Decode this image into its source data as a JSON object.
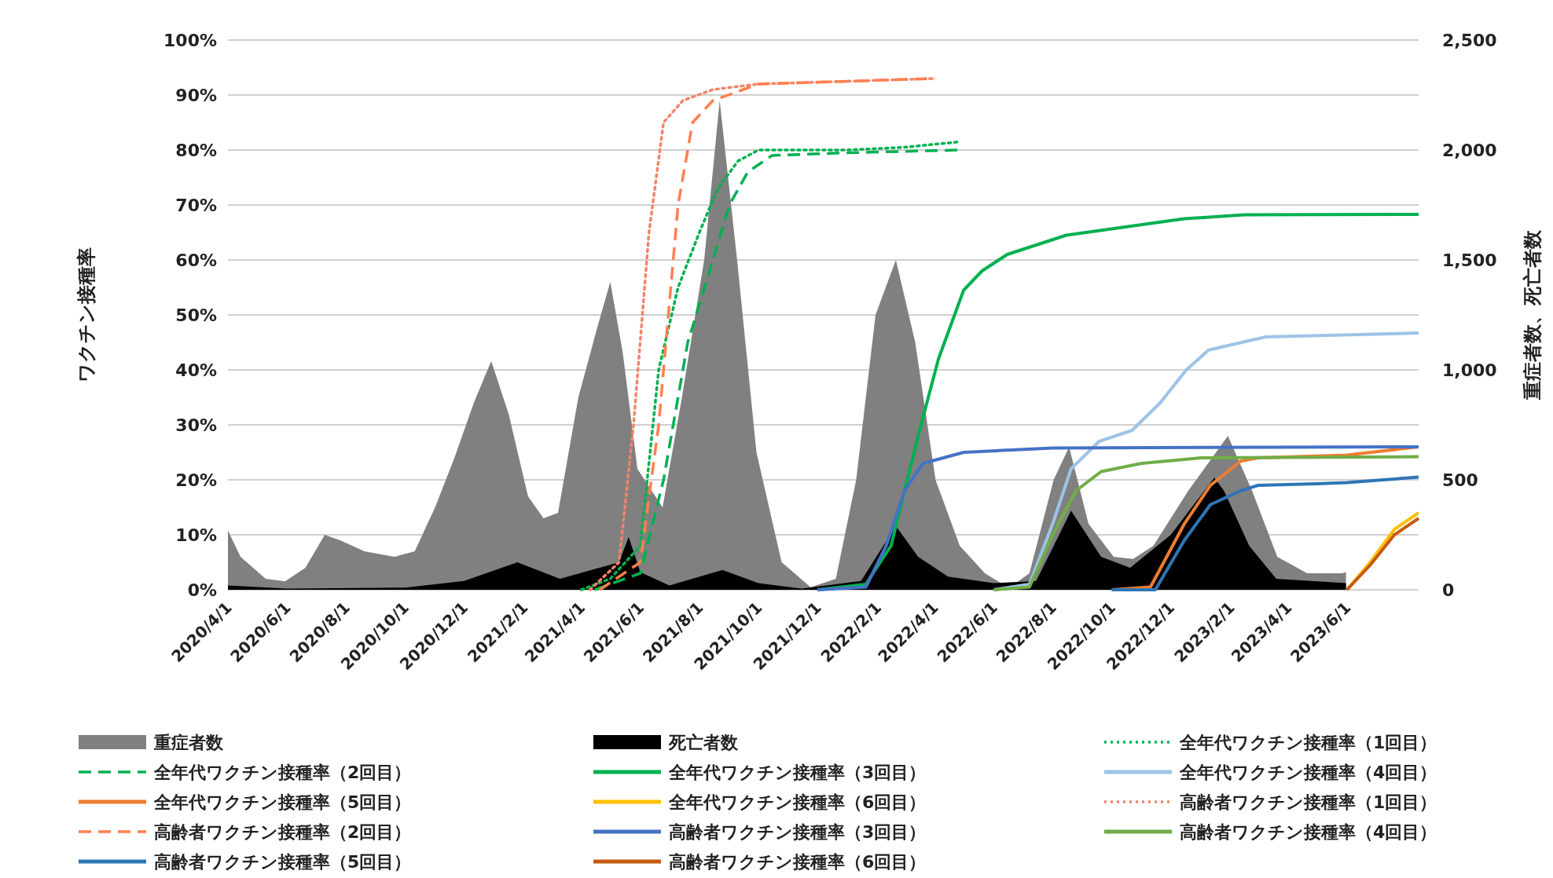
{
  "chart_data": {
    "type": "line",
    "ylabel": "ワクチン接種率",
    "y2label": "重症者数、死亡者数",
    "grid": "y",
    "legend": "bottom",
    "xlim": [
      "2020-04-01",
      "2023-08-14"
    ],
    "xticks": [
      {
        "value": "2020-04-01",
        "label": "2020/4/1"
      },
      {
        "value": "2020-06-01",
        "label": "2020/6/1"
      },
      {
        "value": "2020-08-01",
        "label": "2020/8/1"
      },
      {
        "value": "2020-10-01",
        "label": "2020/10/1"
      },
      {
        "value": "2020-12-01",
        "label": "2020/12/1"
      },
      {
        "value": "2021-02-01",
        "label": "2021/2/1"
      },
      {
        "value": "2021-04-01",
        "label": "2021/4/1"
      },
      {
        "value": "2021-06-01",
        "label": "2021/6/1"
      },
      {
        "value": "2021-08-01",
        "label": "2021/8/1"
      },
      {
        "value": "2021-10-01",
        "label": "2021/10/1"
      },
      {
        "value": "2021-12-01",
        "label": "2021/12/1"
      },
      {
        "value": "2022-02-01",
        "label": "2022/2/1"
      },
      {
        "value": "2022-04-01",
        "label": "2022/4/1"
      },
      {
        "value": "2022-06-01",
        "label": "2022/6/1"
      },
      {
        "value": "2022-08-01",
        "label": "2022/8/1"
      },
      {
        "value": "2022-10-01",
        "label": "2022/10/1"
      },
      {
        "value": "2022-12-01",
        "label": "2022/12/1"
      },
      {
        "value": "2023-02-01",
        "label": "2023/2/1"
      },
      {
        "value": "2023-04-01",
        "label": "2023/4/1"
      },
      {
        "value": "2023-06-01",
        "label": "2023/6/1"
      }
    ],
    "ylim": [
      0,
      100
    ],
    "yticks": [
      {
        "value": 0,
        "label": "0%"
      },
      {
        "value": 10,
        "label": "10%"
      },
      {
        "value": 20,
        "label": "20%"
      },
      {
        "value": 30,
        "label": "30%"
      },
      {
        "value": 40,
        "label": "40%"
      },
      {
        "value": 50,
        "label": "50%"
      },
      {
        "value": 60,
        "label": "60%"
      },
      {
        "value": 70,
        "label": "70%"
      },
      {
        "value": 80,
        "label": "80%"
      },
      {
        "value": 90,
        "label": "90%"
      },
      {
        "value": 100,
        "label": "100%"
      }
    ],
    "y2lim": [
      0,
      2500
    ],
    "y2ticks": [
      0,
      500,
      {
        "value": 1000,
        "label": "1,000"
      },
      {
        "value": 1500,
        "label": "1,500"
      },
      {
        "value": 2000,
        "label": "2,000"
      },
      {
        "value": 2500,
        "label": "2,500"
      }
    ],
    "series": [
      {
        "name": "重症者数",
        "type": "area",
        "axis": "y2",
        "color": "#808080",
        "x": [
          "2020-04-01",
          "2020-04-14",
          "2020-05-10",
          "2020-05-30",
          "2020-06-20",
          "2020-07-10",
          "2020-07-26",
          "2020-08-20",
          "2020-09-20",
          "2020-10-11",
          "2020-11-01",
          "2020-11-21",
          "2020-12-11",
          "2020-12-29",
          "2021-01-16",
          "2021-02-05",
          "2021-02-21",
          "2021-03-08",
          "2021-03-29",
          "2021-04-18",
          "2021-05-01",
          "2021-05-14",
          "2021-05-29",
          "2021-06-24",
          "2021-07-14",
          "2021-08-06",
          "2021-08-22",
          "2021-09-09",
          "2021-09-29",
          "2021-10-25",
          "2021-11-24",
          "2021-12-20",
          "2022-01-10",
          "2022-01-30",
          "2022-02-20",
          "2022-03-12",
          "2022-04-02",
          "2022-04-27",
          "2022-05-23",
          "2022-06-17",
          "2022-07-08",
          "2022-08-02",
          "2022-08-18",
          "2022-09-07",
          "2022-10-03",
          "2022-10-23",
          "2022-11-13",
          "2022-12-19",
          "2023-01-29",
          "2023-02-23",
          "2023-03-21",
          "2023-04-21",
          "2023-05-27",
          "2023-05-31"
        ],
        "values": [
          270,
          150,
          50,
          38,
          100,
          250,
          225,
          175,
          150,
          175,
          375,
          600,
          850,
          1040,
          800,
          425,
          325,
          350,
          875,
          1200,
          1400,
          1075,
          550,
          375,
          875,
          1500,
          2225,
          1500,
          625,
          125,
          12,
          50,
          500,
          1250,
          1500,
          1125,
          500,
          200,
          75,
          8,
          75,
          500,
          650,
          300,
          150,
          140,
          200,
          450,
          700,
          450,
          150,
          75,
          75,
          80
        ]
      },
      {
        "name": "死亡者数",
        "type": "area",
        "axis": "y2",
        "color": "#000000",
        "x": [
          "2020-04-01",
          "2020-06-01",
          "2020-10-01",
          "2020-12-01",
          "2021-01-25",
          "2021-03-10",
          "2021-05-10",
          "2021-05-20",
          "2021-06-01",
          "2021-07-01",
          "2021-08-25",
          "2021-10-01",
          "2021-11-15",
          "2022-01-15",
          "2022-02-20",
          "2022-03-15",
          "2022-04-15",
          "2022-06-01",
          "2022-07-15",
          "2022-08-20",
          "2022-09-20",
          "2022-10-20",
          "2022-12-01",
          "2023-01-15",
          "2023-01-25",
          "2023-02-20",
          "2023-03-20",
          "2023-05-31"
        ],
        "values": [
          20,
          5,
          10,
          40,
          125,
          50,
          125,
          240,
          80,
          20,
          90,
          30,
          5,
          40,
          290,
          150,
          60,
          30,
          40,
          360,
          150,
          100,
          250,
          510,
          450,
          200,
          50,
          30
        ]
      },
      {
        "name": "全年代ワクチン接種率（1回目）",
        "color": "#00b050",
        "line_style": "dotted",
        "x": [
          "2021-04-01",
          "2021-05-01",
          "2021-06-01",
          "2021-06-20",
          "2021-07-10",
          "2021-08-01",
          "2021-08-20",
          "2021-09-10",
          "2021-10-01",
          "2022-01-01",
          "2022-03-01",
          "2022-04-27"
        ],
        "values": [
          0,
          2,
          8,
          40,
          55,
          65,
          73,
          78,
          80,
          80,
          80.5,
          81.5
        ]
      },
      {
        "name": "全年代ワクチン接種率（2回目）",
        "color": "#00b050",
        "line_style": "dashed",
        "x": [
          "2021-04-15",
          "2021-06-01",
          "2021-06-25",
          "2021-07-20",
          "2021-08-15",
          "2021-09-01",
          "2021-09-20",
          "2021-10-15",
          "2022-01-01",
          "2022-04-27"
        ],
        "values": [
          0,
          3,
          20,
          45,
          60,
          70,
          76,
          79,
          79.5,
          80
        ]
      },
      {
        "name": "全年代ワクチン接種率（3回目）",
        "color": "#00b050",
        "line_style": "solid",
        "x": [
          "2021-12-01",
          "2022-01-20",
          "2022-02-15",
          "2022-03-15",
          "2022-04-05",
          "2022-05-01",
          "2022-05-20",
          "2022-06-15",
          "2022-08-15",
          "2022-10-15",
          "2022-12-15",
          "2023-02-15",
          "2023-08-14"
        ],
        "values": [
          0,
          1,
          8,
          28,
          42,
          54.5,
          58,
          61,
          64.5,
          66,
          67.5,
          68.2,
          68.3
        ]
      },
      {
        "name": "全年代ワクチン接種率（4回目）",
        "color": "#9dc3e6",
        "line_style": "solid",
        "x": [
          "2022-06-01",
          "2022-07-08",
          "2022-08-01",
          "2022-08-20",
          "2022-09-18",
          "2022-10-22",
          "2022-11-20",
          "2022-12-17",
          "2023-01-09",
          "2023-03-09",
          "2023-08-14"
        ],
        "values": [
          0,
          1,
          12,
          22,
          27,
          29,
          34,
          40,
          43.6,
          46,
          46.7
        ]
      },
      {
        "name": "全年代ワクチン接種率（5回目）",
        "color": "#ed7d31",
        "line_style": "solid",
        "x": [
          "2022-10-01",
          "2022-11-10",
          "2022-12-15",
          "2023-01-11",
          "2023-02-11",
          "2023-03-01",
          "2023-06-01",
          "2023-08-14"
        ],
        "values": [
          0,
          0.5,
          12,
          19,
          23.4,
          24,
          24.5,
          26
        ]
      },
      {
        "name": "全年代ワクチン接種率（6回目）",
        "color": "#ffc000",
        "line_style": "solid",
        "x": [
          "2023-06-01",
          "2023-06-25",
          "2023-07-20",
          "2023-08-14"
        ],
        "values": [
          0,
          5,
          11,
          14
        ]
      },
      {
        "name": "高齢者ワクチン接種率（1回目）",
        "color": "#f4846a",
        "line_style": "dotted",
        "x": [
          "2021-04-10",
          "2021-05-10",
          "2021-05-25",
          "2021-06-10",
          "2021-06-25",
          "2021-07-15",
          "2021-08-15",
          "2021-10-01",
          "2022-04-01"
        ],
        "values": [
          0,
          5,
          30,
          65,
          85,
          89,
          91,
          92,
          93
        ]
      },
      {
        "name": "高齢者ワクチン接種率（2回目）",
        "color": "#ff7f50",
        "line_style": "dashed",
        "x": [
          "2021-04-20",
          "2021-06-01",
          "2021-06-20",
          "2021-07-10",
          "2021-07-25",
          "2021-08-15",
          "2021-10-01",
          "2022-04-01"
        ],
        "values": [
          0,
          5,
          30,
          70,
          85,
          89,
          92,
          93
        ]
      },
      {
        "name": "高齢者ワクチン接種率（3回目）",
        "color": "#4472c4",
        "line_style": "solid",
        "x": [
          "2021-12-01",
          "2022-01-20",
          "2022-02-10",
          "2022-03-01",
          "2022-03-20",
          "2022-05-01",
          "2022-08-01",
          "2023-08-14"
        ],
        "values": [
          0,
          0.5,
          8,
          18,
          23,
          25,
          25.8,
          26
        ]
      },
      {
        "name": "高齢者ワクチン接種率（4回目）",
        "color": "#70ad47",
        "line_style": "solid",
        "x": [
          "2022-06-01",
          "2022-07-08",
          "2022-08-01",
          "2022-08-25",
          "2022-09-20",
          "2022-11-01",
          "2023-01-01",
          "2023-08-14"
        ],
        "values": [
          0,
          0.5,
          10,
          18,
          21.5,
          23,
          24,
          24.2
        ]
      },
      {
        "name": "高齢者ワクチン接種率（5回目）",
        "color": "#2e75b6",
        "line_style": "solid",
        "x": [
          "2022-10-01",
          "2022-11-15",
          "2022-12-15",
          "2023-01-11",
          "2023-02-11",
          "2023-03-01",
          "2023-05-01",
          "2023-06-01",
          "2023-08-14"
        ],
        "values": [
          0,
          0,
          9,
          15.5,
          18,
          19,
          19.3,
          19.5,
          20.5
        ]
      },
      {
        "name": "高齢者ワクチン接種率（6回目）",
        "color": "#c55a11",
        "line_style": "solid",
        "x": [
          "2023-06-01",
          "2023-06-25",
          "2023-07-20",
          "2023-08-14"
        ],
        "values": [
          0,
          4.5,
          10,
          13
        ]
      }
    ]
  }
}
